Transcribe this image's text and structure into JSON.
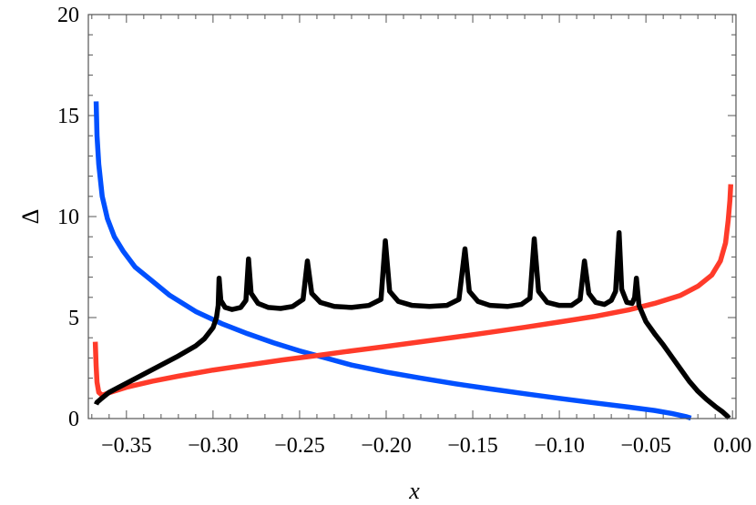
{
  "chart_data": {
    "type": "line",
    "title": "",
    "xlabel": "x",
    "ylabel": "Δ",
    "xlim": [
      -0.372,
      0.002
    ],
    "ylim": [
      0,
      20
    ],
    "grid": false,
    "legend": "none",
    "xticks": [
      -0.35,
      -0.3,
      -0.25,
      -0.2,
      -0.15,
      -0.1,
      -0.05,
      0.0
    ],
    "xtick_labels": [
      "−0.35",
      "−0.30",
      "−0.25",
      "−0.20",
      "−0.15",
      "−0.10",
      "−0.05",
      "0.00"
    ],
    "yticks": [
      0,
      5,
      10,
      15,
      20
    ],
    "ytick_labels": [
      "0",
      "5",
      "10",
      "15",
      "20"
    ],
    "series": [
      {
        "color": "#0050ff",
        "points": [
          [
            -0.3675,
            15.7
          ],
          [
            -0.367,
            14.0
          ],
          [
            -0.366,
            12.6
          ],
          [
            -0.364,
            11.0
          ],
          [
            -0.361,
            9.9
          ],
          [
            -0.357,
            9.0
          ],
          [
            -0.352,
            8.3
          ],
          [
            -0.345,
            7.5
          ],
          [
            -0.335,
            6.8
          ],
          [
            -0.325,
            6.1
          ],
          [
            -0.31,
            5.3
          ],
          [
            -0.295,
            4.7
          ],
          [
            -0.28,
            4.2
          ],
          [
            -0.265,
            3.75
          ],
          [
            -0.25,
            3.35
          ],
          [
            -0.235,
            3.0
          ],
          [
            -0.22,
            2.65
          ],
          [
            -0.2,
            2.3
          ],
          [
            -0.18,
            2.0
          ],
          [
            -0.16,
            1.72
          ],
          [
            -0.14,
            1.47
          ],
          [
            -0.12,
            1.23
          ],
          [
            -0.1,
            1.0
          ],
          [
            -0.08,
            0.78
          ],
          [
            -0.06,
            0.57
          ],
          [
            -0.045,
            0.4
          ],
          [
            -0.035,
            0.25
          ],
          [
            -0.027,
            0.1
          ],
          [
            -0.024,
            0.02
          ]
        ]
      },
      {
        "color": "#ff3b2a",
        "points": [
          [
            -0.368,
            3.8
          ],
          [
            -0.3675,
            2.6
          ],
          [
            -0.367,
            1.8
          ],
          [
            -0.366,
            1.3
          ],
          [
            -0.364,
            1.15
          ],
          [
            -0.36,
            1.28
          ],
          [
            -0.35,
            1.55
          ],
          [
            -0.335,
            1.85
          ],
          [
            -0.32,
            2.1
          ],
          [
            -0.3,
            2.4
          ],
          [
            -0.28,
            2.65
          ],
          [
            -0.26,
            2.9
          ],
          [
            -0.24,
            3.12
          ],
          [
            -0.22,
            3.35
          ],
          [
            -0.2,
            3.57
          ],
          [
            -0.18,
            3.8
          ],
          [
            -0.16,
            4.03
          ],
          [
            -0.14,
            4.27
          ],
          [
            -0.12,
            4.52
          ],
          [
            -0.1,
            4.78
          ],
          [
            -0.08,
            5.05
          ],
          [
            -0.06,
            5.38
          ],
          [
            -0.045,
            5.7
          ],
          [
            -0.03,
            6.1
          ],
          [
            -0.02,
            6.55
          ],
          [
            -0.012,
            7.1
          ],
          [
            -0.007,
            7.8
          ],
          [
            -0.004,
            8.7
          ],
          [
            -0.0025,
            9.8
          ],
          [
            -0.0015,
            10.8
          ],
          [
            -0.001,
            11.6
          ]
        ]
      },
      {
        "color": "#000000",
        "points": [
          [
            -0.3675,
            0.7
          ],
          [
            -0.367,
            0.8
          ],
          [
            -0.365,
            0.95
          ],
          [
            -0.36,
            1.3
          ],
          [
            -0.35,
            1.75
          ],
          [
            -0.34,
            2.2
          ],
          [
            -0.33,
            2.65
          ],
          [
            -0.32,
            3.1
          ],
          [
            -0.31,
            3.6
          ],
          [
            -0.305,
            3.95
          ],
          [
            -0.3,
            4.5
          ],
          [
            -0.298,
            5.0
          ],
          [
            -0.297,
            5.6
          ],
          [
            -0.2965,
            6.95
          ],
          [
            -0.2955,
            5.85
          ],
          [
            -0.293,
            5.5
          ],
          [
            -0.289,
            5.4
          ],
          [
            -0.284,
            5.5
          ],
          [
            -0.281,
            5.85
          ],
          [
            -0.2795,
            7.9
          ],
          [
            -0.278,
            6.2
          ],
          [
            -0.274,
            5.7
          ],
          [
            -0.268,
            5.5
          ],
          [
            -0.261,
            5.45
          ],
          [
            -0.254,
            5.55
          ],
          [
            -0.248,
            5.9
          ],
          [
            -0.2455,
            7.8
          ],
          [
            -0.243,
            6.2
          ],
          [
            -0.238,
            5.75
          ],
          [
            -0.23,
            5.55
          ],
          [
            -0.22,
            5.5
          ],
          [
            -0.21,
            5.6
          ],
          [
            -0.203,
            5.9
          ],
          [
            -0.2005,
            8.8
          ],
          [
            -0.198,
            6.3
          ],
          [
            -0.193,
            5.8
          ],
          [
            -0.185,
            5.6
          ],
          [
            -0.175,
            5.55
          ],
          [
            -0.165,
            5.6
          ],
          [
            -0.158,
            5.9
          ],
          [
            -0.1545,
            8.4
          ],
          [
            -0.152,
            6.3
          ],
          [
            -0.147,
            5.8
          ],
          [
            -0.14,
            5.6
          ],
          [
            -0.13,
            5.55
          ],
          [
            -0.122,
            5.65
          ],
          [
            -0.117,
            5.95
          ],
          [
            -0.1145,
            8.9
          ],
          [
            -0.112,
            6.3
          ],
          [
            -0.107,
            5.75
          ],
          [
            -0.1,
            5.6
          ],
          [
            -0.093,
            5.6
          ],
          [
            -0.088,
            5.9
          ],
          [
            -0.0855,
            7.8
          ],
          [
            -0.083,
            6.2
          ],
          [
            -0.079,
            5.75
          ],
          [
            -0.074,
            5.65
          ],
          [
            -0.07,
            5.85
          ],
          [
            -0.0675,
            6.3
          ],
          [
            -0.0655,
            9.2
          ],
          [
            -0.064,
            6.4
          ],
          [
            -0.061,
            5.75
          ],
          [
            -0.058,
            5.7
          ],
          [
            -0.0565,
            6.0
          ],
          [
            -0.0555,
            6.95
          ],
          [
            -0.054,
            5.6
          ],
          [
            -0.05,
            4.8
          ],
          [
            -0.045,
            4.2
          ],
          [
            -0.04,
            3.65
          ],
          [
            -0.035,
            3.05
          ],
          [
            -0.03,
            2.45
          ],
          [
            -0.025,
            1.85
          ],
          [
            -0.02,
            1.35
          ],
          [
            -0.015,
            0.95
          ],
          [
            -0.01,
            0.6
          ],
          [
            -0.006,
            0.35
          ],
          [
            -0.003,
            0.12
          ],
          [
            -0.002,
            0.02
          ]
        ]
      }
    ]
  }
}
